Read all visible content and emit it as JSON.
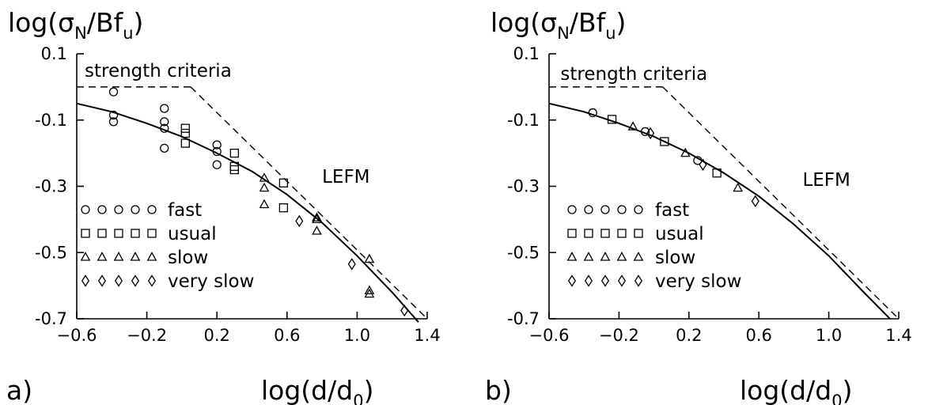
{
  "chart_data": [
    {
      "type": "scatter",
      "panel_label": "a)",
      "ylabel_main": "log(σ",
      "ylabel_sub1": "N",
      "ylabel_mid": "/Bf",
      "ylabel_sub2": "u",
      "ylabel_end": ")",
      "xlabel_main": "log(d/d",
      "xlabel_sub": "0",
      "xlabel_end": ")",
      "xlim": [
        -0.6,
        1.4
      ],
      "ylim": [
        -0.7,
        0.1
      ],
      "xticks": [
        -0.6,
        -0.2,
        0.2,
        0.6,
        1.0,
        1.4
      ],
      "xtick_labels": [
        "−0.6",
        "−0.2",
        "0.2",
        "0.6",
        "1.0",
        "1.4"
      ],
      "yticks": [
        0.1,
        -0.1,
        -0.3,
        -0.5,
        -0.7
      ],
      "ytick_labels": [
        "0.1",
        "-0.1",
        "-0.3",
        "-0.5",
        "-0.7"
      ],
      "annotations": [
        {
          "text": "strength  criteria",
          "x": -0.6,
          "y": 0.05
        },
        {
          "text": "LEFM",
          "x": 0.8,
          "y": -0.27
        }
      ],
      "legend": [
        {
          "symbol": "circle",
          "text": "fast"
        },
        {
          "symbol": "square",
          "text": "usual"
        },
        {
          "symbol": "triangle",
          "text": "slow"
        },
        {
          "symbol": "diamond",
          "text": "very  slow"
        }
      ],
      "series": [
        {
          "name": "fast",
          "symbol": "circle",
          "x": [
            -0.39,
            -0.39,
            -0.39,
            -0.1,
            -0.1,
            -0.1,
            -0.1,
            0.2,
            0.2,
            0.2
          ],
          "y": [
            -0.015,
            -0.085,
            -0.105,
            -0.065,
            -0.105,
            -0.185,
            -0.125,
            -0.175,
            -0.195,
            -0.235
          ]
        },
        {
          "name": "usual",
          "symbol": "square",
          "x": [
            0.02,
            0.02,
            0.02,
            0.3,
            0.3,
            0.3,
            0.58,
            0.58
          ],
          "y": [
            -0.125,
            -0.14,
            -0.17,
            -0.2,
            -0.24,
            -0.25,
            -0.29,
            -0.365
          ]
        },
        {
          "name": "slow",
          "symbol": "triangle",
          "x": [
            0.47,
            0.47,
            0.47,
            0.77,
            0.77,
            0.77,
            1.07,
            1.07,
            1.07
          ],
          "y": [
            -0.275,
            -0.305,
            -0.355,
            -0.395,
            -0.4,
            -0.435,
            -0.52,
            -0.615,
            -0.625
          ]
        },
        {
          "name": "very slow",
          "symbol": "diamond",
          "x": [
            0.67,
            0.97,
            1.27
          ],
          "y": [
            -0.405,
            -0.535,
            -0.675
          ]
        }
      ],
      "curve": {
        "x": [
          -0.6,
          -0.4,
          -0.2,
          0.0,
          0.2,
          0.4,
          0.6,
          0.8,
          1.0,
          1.2,
          1.35
        ],
        "y": [
          -0.05,
          -0.075,
          -0.11,
          -0.15,
          -0.2,
          -0.255,
          -0.325,
          -0.41,
          -0.51,
          -0.62,
          -0.71
        ]
      },
      "strength_line": {
        "x": [
          -0.6,
          0.05
        ],
        "y": [
          0.0,
          0.0
        ]
      },
      "lefm_line": {
        "x": [
          0.05,
          1.4
        ],
        "y": [
          0.0,
          -0.7
        ]
      }
    },
    {
      "type": "scatter",
      "panel_label": "b)",
      "ylabel_main": "log(σ",
      "ylabel_sub1": "N",
      "ylabel_mid": "/Bf",
      "ylabel_sub2": "u",
      "ylabel_end": ")",
      "xlabel_main": "log(d/d",
      "xlabel_sub": "0",
      "xlabel_end": ")",
      "xlim": [
        -0.6,
        1.4
      ],
      "ylim": [
        -0.7,
        0.1
      ],
      "xticks": [
        -0.6,
        -0.2,
        0.2,
        0.6,
        1.0,
        1.4
      ],
      "xtick_labels": [
        "−0.6",
        "−0.2",
        "0.2",
        "0.6",
        "1.0",
        "1.4"
      ],
      "yticks": [
        0.1,
        -0.1,
        -0.3,
        -0.5,
        -0.7
      ],
      "ytick_labels": [
        "0.1",
        "-0.1",
        "-0.3",
        "-0.5",
        "-0.7"
      ],
      "annotations": [
        {
          "text": "strength  criteria",
          "x": -0.58,
          "y": 0.04
        },
        {
          "text": "LEFM",
          "x": 0.85,
          "y": -0.28
        }
      ],
      "legend": [
        {
          "symbol": "circle",
          "text": "fast"
        },
        {
          "symbol": "square",
          "text": "usual"
        },
        {
          "symbol": "triangle",
          "text": "slow"
        },
        {
          "symbol": "diamond",
          "text": "very  slow"
        }
      ],
      "series": [
        {
          "name": "fast",
          "symbol": "circle",
          "x": [
            -0.35,
            -0.05,
            0.25
          ],
          "y": [
            -0.078,
            -0.135,
            -0.222
          ]
        },
        {
          "name": "usual",
          "symbol": "square",
          "x": [
            -0.24,
            0.06,
            0.36
          ],
          "y": [
            -0.098,
            -0.165,
            -0.26
          ]
        },
        {
          "name": "slow",
          "symbol": "triangle",
          "x": [
            -0.12,
            0.18,
            0.48
          ],
          "y": [
            -0.12,
            -0.2,
            -0.305
          ]
        },
        {
          "name": "very slow",
          "symbol": "diamond",
          "x": [
            -0.02,
            0.28,
            0.58
          ],
          "y": [
            -0.14,
            -0.235,
            -0.345
          ]
        }
      ],
      "curve": {
        "x": [
          -0.6,
          -0.4,
          -0.2,
          0.0,
          0.2,
          0.4,
          0.6,
          0.8,
          1.0,
          1.2,
          1.35
        ],
        "y": [
          -0.05,
          -0.075,
          -0.11,
          -0.15,
          -0.2,
          -0.26,
          -0.33,
          -0.415,
          -0.51,
          -0.62,
          -0.7
        ]
      },
      "strength_line": {
        "x": [
          -0.6,
          0.05
        ],
        "y": [
          0.0,
          0.0
        ]
      },
      "lefm_line": {
        "x": [
          0.05,
          1.4
        ],
        "y": [
          0.0,
          -0.7
        ]
      }
    }
  ]
}
